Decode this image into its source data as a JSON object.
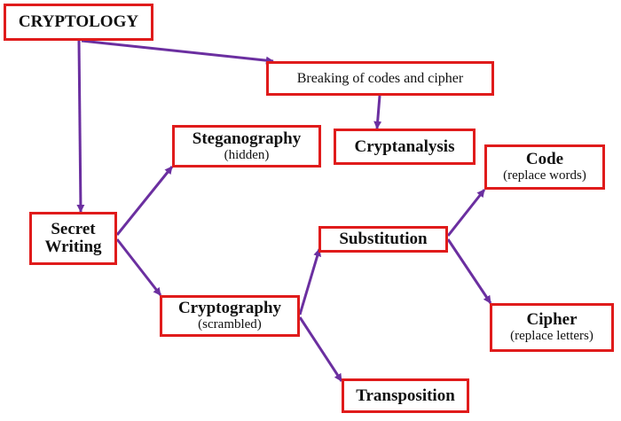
{
  "nodes": {
    "cryptology": {
      "title": "CRYPTOLOGY"
    },
    "breaking": {
      "title": "Breaking of codes and cipher"
    },
    "cryptanalysis": {
      "title": "Cryptanalysis"
    },
    "secret_writing": {
      "line1": "Secret",
      "line2": "Writing"
    },
    "steganography": {
      "title": "Steganography",
      "subtitle": "(hidden)"
    },
    "cryptography": {
      "title": "Cryptography",
      "subtitle": "(scrambled)"
    },
    "substitution": {
      "title": "Substitution"
    },
    "transposition": {
      "title": "Transposition"
    },
    "code": {
      "title": "Code",
      "subtitle": "(replace words)"
    },
    "cipher": {
      "title": "Cipher",
      "subtitle": "(replace letters)"
    }
  },
  "colors": {
    "box_border": "#e01b1b",
    "arrow": "#6b2fa0"
  }
}
